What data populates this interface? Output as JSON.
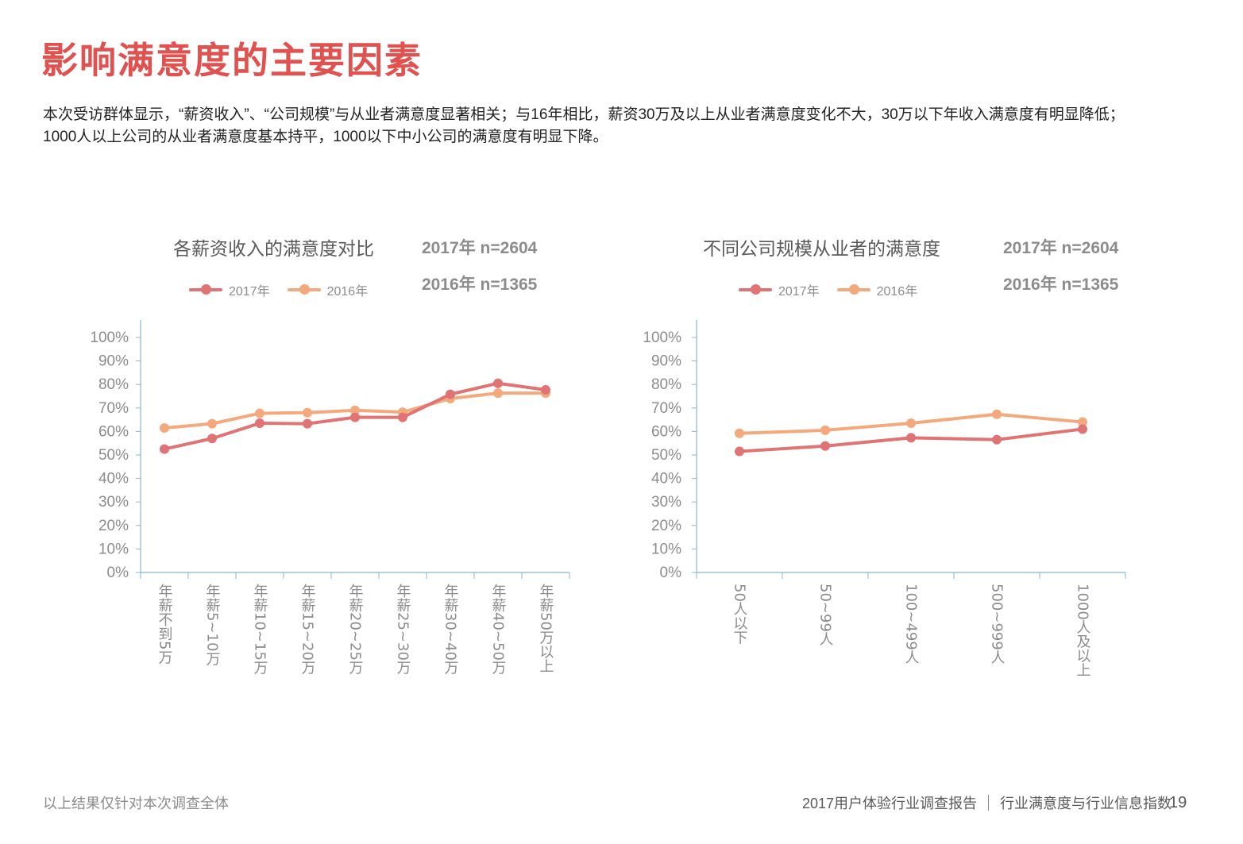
{
  "title": "影响满意度的主要因素",
  "intro": "本次受访群体显示，“薪资收入”、“公司规模”与从业者满意度显著相关；与16年相比，薪资30万及以上从业者满意度变化不大，30万以下年收入满意度有明显降低；1000人以上公司的从业者满意度基本持平，1000以下中小公司的满意度有明显下降。",
  "colors": {
    "title": "#e0524f",
    "series_2017": "#e07374",
    "series_2016": "#f4a97c",
    "axis": "#8eb4cb",
    "text_gray": "#8c8c8c"
  },
  "chart_data": [
    {
      "type": "line",
      "title": "各薪资收入的满意度对比",
      "sample_2017": "2017年 n=2604",
      "sample_2016": "2016年 n=1365",
      "categories": [
        "年薪不到5万",
        "年薪5~10万",
        "年薪10~15万",
        "年薪15~20万",
        "年薪20~25万",
        "年薪25~30万",
        "年薪30~40万",
        "年薪40~50万",
        "年薪50万以上"
      ],
      "series": [
        {
          "name": "2017年",
          "values": [
            52.5,
            57,
            63.5,
            63.3,
            66,
            66,
            75.8,
            80.5,
            77.7
          ]
        },
        {
          "name": "2016年",
          "values": [
            61.5,
            63.3,
            67.7,
            68,
            69,
            68.2,
            74,
            76.3,
            76.3
          ]
        }
      ],
      "y_ticks": [
        "0%",
        "10%",
        "20%",
        "30%",
        "40%",
        "50%",
        "60%",
        "70%",
        "80%",
        "90%",
        "100%"
      ],
      "ylim": [
        0,
        100
      ],
      "xlabel": "",
      "ylabel": ""
    },
    {
      "type": "line",
      "title": "不同公司规模从业者的满意度",
      "sample_2017": "2017年 n=2604",
      "sample_2016": "2016年 n=1365",
      "categories": [
        "50人以下",
        "50~99人",
        "100~499人",
        "500~999人",
        "1000人及以上"
      ],
      "series": [
        {
          "name": "2017年",
          "values": [
            51.5,
            53.8,
            57.3,
            56.5,
            61
          ]
        },
        {
          "name": "2016年",
          "values": [
            59.2,
            60.5,
            63.5,
            67.3,
            64
          ]
        }
      ],
      "y_ticks": [
        "0%",
        "10%",
        "20%",
        "30%",
        "40%",
        "50%",
        "60%",
        "70%",
        "80%",
        "90%",
        "100%"
      ],
      "ylim": [
        0,
        100
      ],
      "xlabel": "",
      "ylabel": ""
    }
  ],
  "footer": {
    "note": "以上结果仅针对本次调查全体",
    "report_title": "2017用户体验行业调查报告",
    "section": "行业满意度与行业信息指数",
    "page_number": "19"
  }
}
